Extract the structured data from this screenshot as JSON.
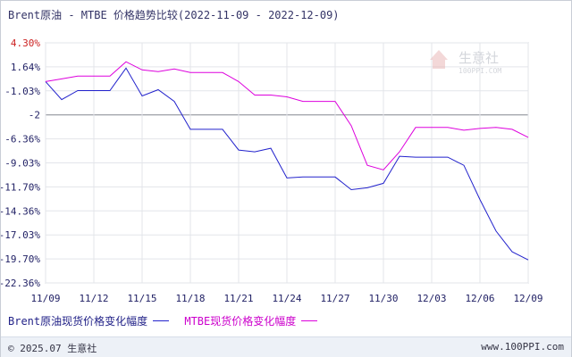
{
  "title": "Brent原油 - MTBE 价格趋势比较(2022-11-09 - 2022-12-09)",
  "chart_data": {
    "type": "line",
    "title": "Brent原油 - MTBE 价格趋势比较(2022-11-09 - 2022-12-09)",
    "x": [
      "11/09",
      "11/10",
      "11/11",
      "11/12",
      "11/13",
      "11/14",
      "11/15",
      "11/16",
      "11/17",
      "11/18",
      "11/19",
      "11/20",
      "11/21",
      "11/22",
      "11/23",
      "11/24",
      "11/25",
      "11/26",
      "11/27",
      "11/28",
      "11/29",
      "11/30",
      "12/01",
      "12/02",
      "12/03",
      "12/04",
      "12/05",
      "12/06",
      "12/07",
      "12/08",
      "12/09"
    ],
    "xtick_labels": [
      "11/09",
      "11/12",
      "11/15",
      "11/18",
      "11/21",
      "11/24",
      "11/27",
      "11/30",
      "12/03",
      "12/06",
      "12/09"
    ],
    "ytick_labels": [
      "4.30%",
      "1.64%",
      "-1.03%",
      "-2",
      "-6.36%",
      "-9.03%",
      "-11.70%",
      "-14.36%",
      "-17.03%",
      "-19.70%",
      "-22.36%"
    ],
    "ylim": [
      -22.36,
      4.3
    ],
    "reference_line": -2,
    "grid": true,
    "legend_position": "bottom",
    "series": [
      {
        "name": "Brent原油现货价格变化幅度",
        "color": "#2222cc",
        "values": [
          0,
          -2.0,
          -1.0,
          -1.0,
          -1.0,
          1.5,
          -1.6,
          -0.9,
          -2.2,
          -5.3,
          -5.3,
          -5.3,
          -7.6,
          -7.8,
          -7.4,
          -10.7,
          -10.6,
          -10.6,
          -10.6,
          -12.0,
          -11.8,
          -11.3,
          -8.3,
          -8.4,
          -8.4,
          -8.4,
          -9.3,
          -13.1,
          -16.6,
          -18.9,
          -19.8
        ]
      },
      {
        "name": "MTBE现货价格变化幅度",
        "color": "#dd00dd",
        "values": [
          0,
          0.3,
          0.6,
          0.6,
          0.6,
          2.2,
          1.3,
          1.1,
          1.4,
          1.0,
          1.0,
          1.0,
          0,
          -1.5,
          -1.5,
          -1.7,
          -2.2,
          -2.2,
          -2.2,
          -4.9,
          -9.3,
          -9.8,
          -7.8,
          -5.1,
          -5.1,
          -5.1,
          -5.4,
          -5.2,
          -5.1,
          -5.3,
          -6.2
        ]
      }
    ]
  },
  "watermark": "生意社",
  "watermark_sub": "100PPI.COM",
  "footer": {
    "copyright": "© 2025.07 生意社",
    "site": "www.100PPI.com"
  }
}
